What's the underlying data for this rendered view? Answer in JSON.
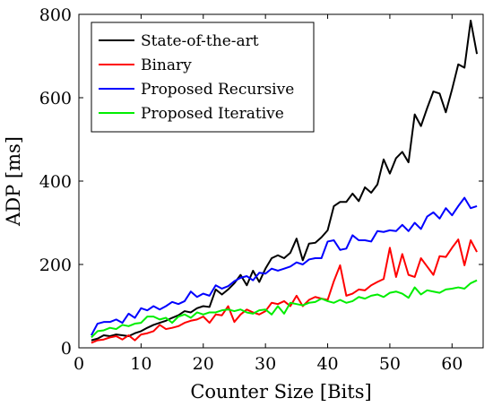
{
  "chart_data": {
    "type": "line",
    "xlabel": "Counter Size [Bits]",
    "ylabel": "ADP [ms]",
    "xlim": [
      0,
      65
    ],
    "ylim": [
      0,
      800
    ],
    "xticks": [
      0,
      10,
      20,
      30,
      40,
      50,
      60
    ],
    "yticks": [
      0,
      200,
      400,
      600,
      800
    ],
    "grid": false,
    "legend_position": "top-left",
    "x": [
      2,
      3,
      4,
      5,
      6,
      7,
      8,
      9,
      10,
      11,
      12,
      13,
      14,
      15,
      16,
      17,
      18,
      19,
      20,
      21,
      22,
      23,
      24,
      25,
      26,
      27,
      28,
      29,
      30,
      31,
      32,
      33,
      34,
      35,
      36,
      37,
      38,
      39,
      40,
      41,
      42,
      43,
      44,
      45,
      46,
      47,
      48,
      49,
      50,
      51,
      52,
      53,
      54,
      55,
      56,
      57,
      58,
      59,
      60,
      61,
      62,
      63,
      64
    ],
    "series": [
      {
        "name": "State-of-the-art",
        "color": "#000000",
        "values": [
          18,
          22,
          30,
          28,
          32,
          30,
          28,
          35,
          40,
          48,
          55,
          60,
          65,
          72,
          78,
          88,
          85,
          95,
          100,
          98,
          140,
          128,
          140,
          155,
          175,
          150,
          185,
          158,
          190,
          215,
          222,
          215,
          228,
          262,
          210,
          250,
          252,
          265,
          282,
          340,
          350,
          350,
          370,
          352,
          385,
          372,
          392,
          452,
          418,
          455,
          470,
          445,
          560,
          532,
          575,
          615,
          610,
          565,
          620,
          680,
          672,
          785,
          705
        ]
      },
      {
        "name": "Binary",
        "color": "#ff0000",
        "values": [
          12,
          18,
          20,
          25,
          28,
          20,
          30,
          18,
          32,
          35,
          40,
          55,
          45,
          48,
          52,
          60,
          65,
          68,
          75,
          60,
          80,
          78,
          100,
          62,
          80,
          92,
          85,
          80,
          88,
          108,
          105,
          112,
          100,
          125,
          100,
          115,
          122,
          118,
          115,
          160,
          198,
          125,
          130,
          140,
          138,
          150,
          158,
          165,
          240,
          170,
          225,
          175,
          170,
          215,
          195,
          175,
          220,
          218,
          240,
          260,
          198,
          258,
          230
        ]
      },
      {
        "name": "Proposed Recursive",
        "color": "#0000ff",
        "values": [
          30,
          58,
          62,
          62,
          68,
          60,
          82,
          72,
          95,
          90,
          100,
          92,
          100,
          110,
          105,
          112,
          135,
          122,
          130,
          125,
          150,
          142,
          148,
          160,
          168,
          172,
          162,
          180,
          178,
          190,
          185,
          190,
          195,
          205,
          200,
          212,
          215,
          215,
          255,
          258,
          235,
          238,
          270,
          258,
          258,
          255,
          280,
          278,
          282,
          280,
          295,
          280,
          300,
          285,
          315,
          325,
          310,
          335,
          318,
          340,
          360,
          335,
          340
        ]
      },
      {
        "name": "Proposed Iterative",
        "color": "#00ee00",
        "values": [
          25,
          40,
          42,
          48,
          45,
          55,
          52,
          58,
          60,
          75,
          75,
          68,
          72,
          60,
          75,
          80,
          72,
          85,
          80,
          85,
          85,
          90,
          92,
          88,
          92,
          85,
          82,
          90,
          92,
          80,
          100,
          82,
          108,
          105,
          102,
          108,
          110,
          118,
          112,
          108,
          115,
          108,
          112,
          122,
          118,
          125,
          128,
          122,
          132,
          135,
          130,
          120,
          145,
          128,
          138,
          135,
          132,
          140,
          142,
          145,
          142,
          155,
          162
        ]
      }
    ]
  }
}
